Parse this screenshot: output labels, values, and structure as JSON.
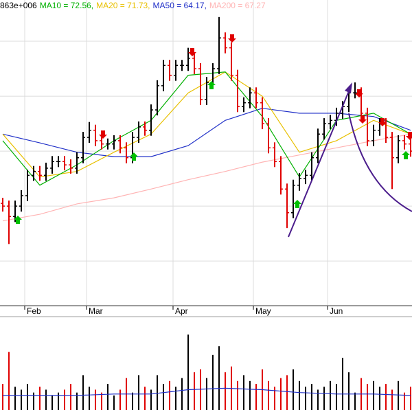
{
  "chart_data": {
    "type": "ohlc",
    "volume_label": "863e+006",
    "categories": [
      null,
      null,
      null,
      null,
      "Feb",
      null,
      null,
      null,
      null,
      null,
      null,
      null,
      null,
      null,
      "Mar",
      null,
      null,
      null,
      null,
      null,
      null,
      null,
      null,
      null,
      null,
      null,
      null,
      null,
      "Apr",
      null,
      null,
      null,
      null,
      null,
      null,
      null,
      null,
      null,
      null,
      null,
      null,
      "May",
      null,
      null,
      null,
      null,
      null,
      null,
      null,
      null,
      null,
      null,
      null,
      "Jun",
      null,
      null,
      null,
      null,
      null,
      null,
      null,
      null,
      null,
      null,
      null,
      null,
      null
    ],
    "open": [
      63.0,
      62.5,
      60.6,
      62.5,
      64.4,
      68.1,
      68.8,
      68.1,
      69.4,
      70.6,
      70.6,
      70.0,
      69.4,
      71.3,
      75.0,
      76.3,
      74.4,
      73.8,
      73.8,
      74.4,
      73.1,
      71.3,
      75.0,
      76.9,
      76.3,
      80.0,
      84.4,
      88.1,
      86.3,
      88.1,
      88.1,
      89.4,
      87.5,
      81.9,
      85.0,
      87.5,
      93.1,
      91.3,
      86.3,
      80.6,
      81.3,
      83.1,
      81.3,
      77.5,
      73.1,
      70.6,
      65.6,
      61.3,
      66.3,
      67.5,
      68.1,
      71.3,
      75.6,
      77.5,
      78.1,
      79.4,
      80.6,
      83.1,
      83.1,
      79.4,
      74.4,
      76.3,
      77.5,
      75.0,
      71.3,
      74.4,
      73.8
    ],
    "high": [
      64.0,
      63.5,
      63.5,
      65.4,
      69.1,
      69.8,
      69.8,
      70.4,
      71.6,
      71.6,
      71.6,
      71.0,
      72.3,
      76.0,
      77.8,
      77.3,
      75.4,
      74.8,
      75.4,
      75.4,
      74.1,
      76.0,
      77.9,
      77.9,
      81.0,
      85.4,
      89.1,
      89.1,
      89.1,
      89.1,
      91.3,
      90.4,
      88.5,
      86.0,
      88.5,
      96.9,
      94.1,
      92.3,
      87.3,
      82.3,
      84.1,
      84.1,
      82.3,
      78.5,
      74.1,
      71.6,
      66.6,
      67.3,
      68.5,
      69.1,
      72.3,
      76.6,
      78.5,
      79.1,
      80.4,
      81.6,
      84.1,
      85.0,
      84.1,
      80.4,
      77.3,
      78.5,
      78.5,
      76.0,
      75.4,
      75.4,
      74.8
    ],
    "low": [
      61.5,
      55.6,
      59.6,
      61.5,
      63.4,
      67.1,
      67.1,
      67.1,
      68.4,
      69.6,
      69.0,
      68.4,
      68.4,
      70.3,
      74.0,
      73.4,
      72.8,
      72.8,
      72.8,
      72.1,
      70.3,
      70.3,
      74.0,
      75.3,
      75.3,
      79.0,
      83.4,
      85.3,
      85.3,
      87.1,
      87.1,
      86.5,
      80.9,
      80.9,
      84.0,
      86.5,
      90.3,
      85.3,
      79.6,
      79.6,
      80.3,
      80.3,
      76.5,
      72.1,
      69.6,
      64.6,
      58.5,
      60.3,
      65.3,
      66.5,
      67.1,
      70.3,
      74.6,
      76.5,
      77.1,
      78.4,
      79.6,
      82.1,
      78.4,
      73.4,
      73.4,
      75.3,
      74.0,
      65.6,
      70.3,
      72.8,
      71.5
    ],
    "close": [
      62.5,
      60.6,
      62.5,
      64.4,
      68.1,
      68.8,
      68.1,
      69.4,
      70.6,
      70.6,
      70.0,
      69.4,
      71.3,
      75.0,
      76.3,
      74.4,
      73.8,
      73.8,
      74.4,
      73.1,
      71.3,
      75.0,
      76.9,
      76.3,
      80.0,
      84.4,
      88.1,
      86.3,
      88.1,
      88.1,
      89.4,
      87.5,
      81.9,
      85.0,
      87.5,
      93.1,
      91.3,
      86.3,
      80.6,
      81.3,
      83.1,
      81.3,
      77.5,
      73.1,
      70.6,
      65.6,
      61.3,
      66.3,
      67.5,
      68.1,
      71.3,
      75.6,
      77.5,
      78.1,
      79.4,
      80.6,
      83.1,
      83.1,
      79.4,
      74.4,
      76.3,
      77.5,
      75.0,
      71.3,
      74.4,
      73.8,
      72.5
    ],
    "volume": [
      0.9,
      2.0,
      0.8,
      0.7,
      0.9,
      0.6,
      0.8,
      0.7,
      0.5,
      0.6,
      0.7,
      0.9,
      0.6,
      1.2,
      0.8,
      0.7,
      0.6,
      0.9,
      0.5,
      0.7,
      1.1,
      0.6,
      1.2,
      0.8,
      0.7,
      1.2,
      0.9,
      1.0,
      0.8,
      1.1,
      2.6,
      1.3,
      1.4,
      1.1,
      1.9,
      2.2,
      1.3,
      1.5,
      1.0,
      1.2,
      1.0,
      0.9,
      1.4,
      1.0,
      0.8,
      1.1,
      1.2,
      1.4,
      1.0,
      0.8,
      0.9,
      0.7,
      0.8,
      1.0,
      0.9,
      1.8,
      1.3,
      0.6,
      1.1,
      0.9,
      1.0,
      0.8,
      0.9,
      0.7,
      1.0,
      0.6,
      0.8
    ],
    "up_color": "#000000",
    "down_color": "#e00000",
    "ylim": [
      44.4,
      100
    ],
    "yticks": [
      52.5,
      62.5,
      72.5,
      82.5,
      92.5
    ],
    "vlim": [
      0,
      3.2
    ],
    "grid": true,
    "series": [
      {
        "name": "MA10 = 72.56,",
        "color": "#00b000",
        "x": [
          0,
          6,
          12,
          18,
          24,
          30,
          36,
          42,
          48,
          54,
          60,
          66
        ],
        "values": [
          74.4,
          66.3,
          70.0,
          74.4,
          78.1,
          86.3,
          86.9,
          78.8,
          67.8,
          78.1,
          79.4,
          75.6
        ]
      },
      {
        "name": "MA20 = 71.73,",
        "color": "#e8c000",
        "x": [
          0,
          6,
          12,
          18,
          24,
          30,
          36,
          42,
          48,
          54,
          60,
          66
        ],
        "values": [
          75.6,
          67.8,
          68.8,
          72.3,
          75.6,
          83.1,
          86.9,
          82.5,
          72.3,
          74.4,
          78.1,
          75.6
        ]
      },
      {
        "name": "MA50 = 64.17,",
        "color": "#2030c8",
        "x": [
          0,
          6,
          12,
          18,
          24,
          30,
          36,
          42,
          48,
          54,
          60,
          66
        ],
        "values": [
          75.6,
          74.0,
          72.3,
          71.5,
          71.5,
          73.5,
          78.1,
          80.3,
          79.4,
          79.4,
          78.8,
          76.3
        ]
      },
      {
        "name": "MA200 = 67.27",
        "color": "#ffb4b4",
        "x": [
          0,
          6,
          12,
          18,
          24,
          30,
          36,
          42,
          48,
          54,
          60,
          66
        ],
        "values": [
          59.8,
          61.0,
          62.9,
          64.0,
          65.6,
          67.3,
          68.8,
          70.5,
          71.8,
          73.1,
          74.4,
          75.6
        ]
      }
    ],
    "volume_ma": {
      "color": "#2030c8",
      "x": [
        0,
        6,
        12,
        18,
        24,
        30,
        36,
        42,
        48,
        54,
        60,
        66
      ],
      "values": [
        0.5,
        0.5,
        0.5,
        0.55,
        0.55,
        0.7,
        0.75,
        0.7,
        0.6,
        0.55,
        0.55,
        0.5
      ]
    }
  }
}
